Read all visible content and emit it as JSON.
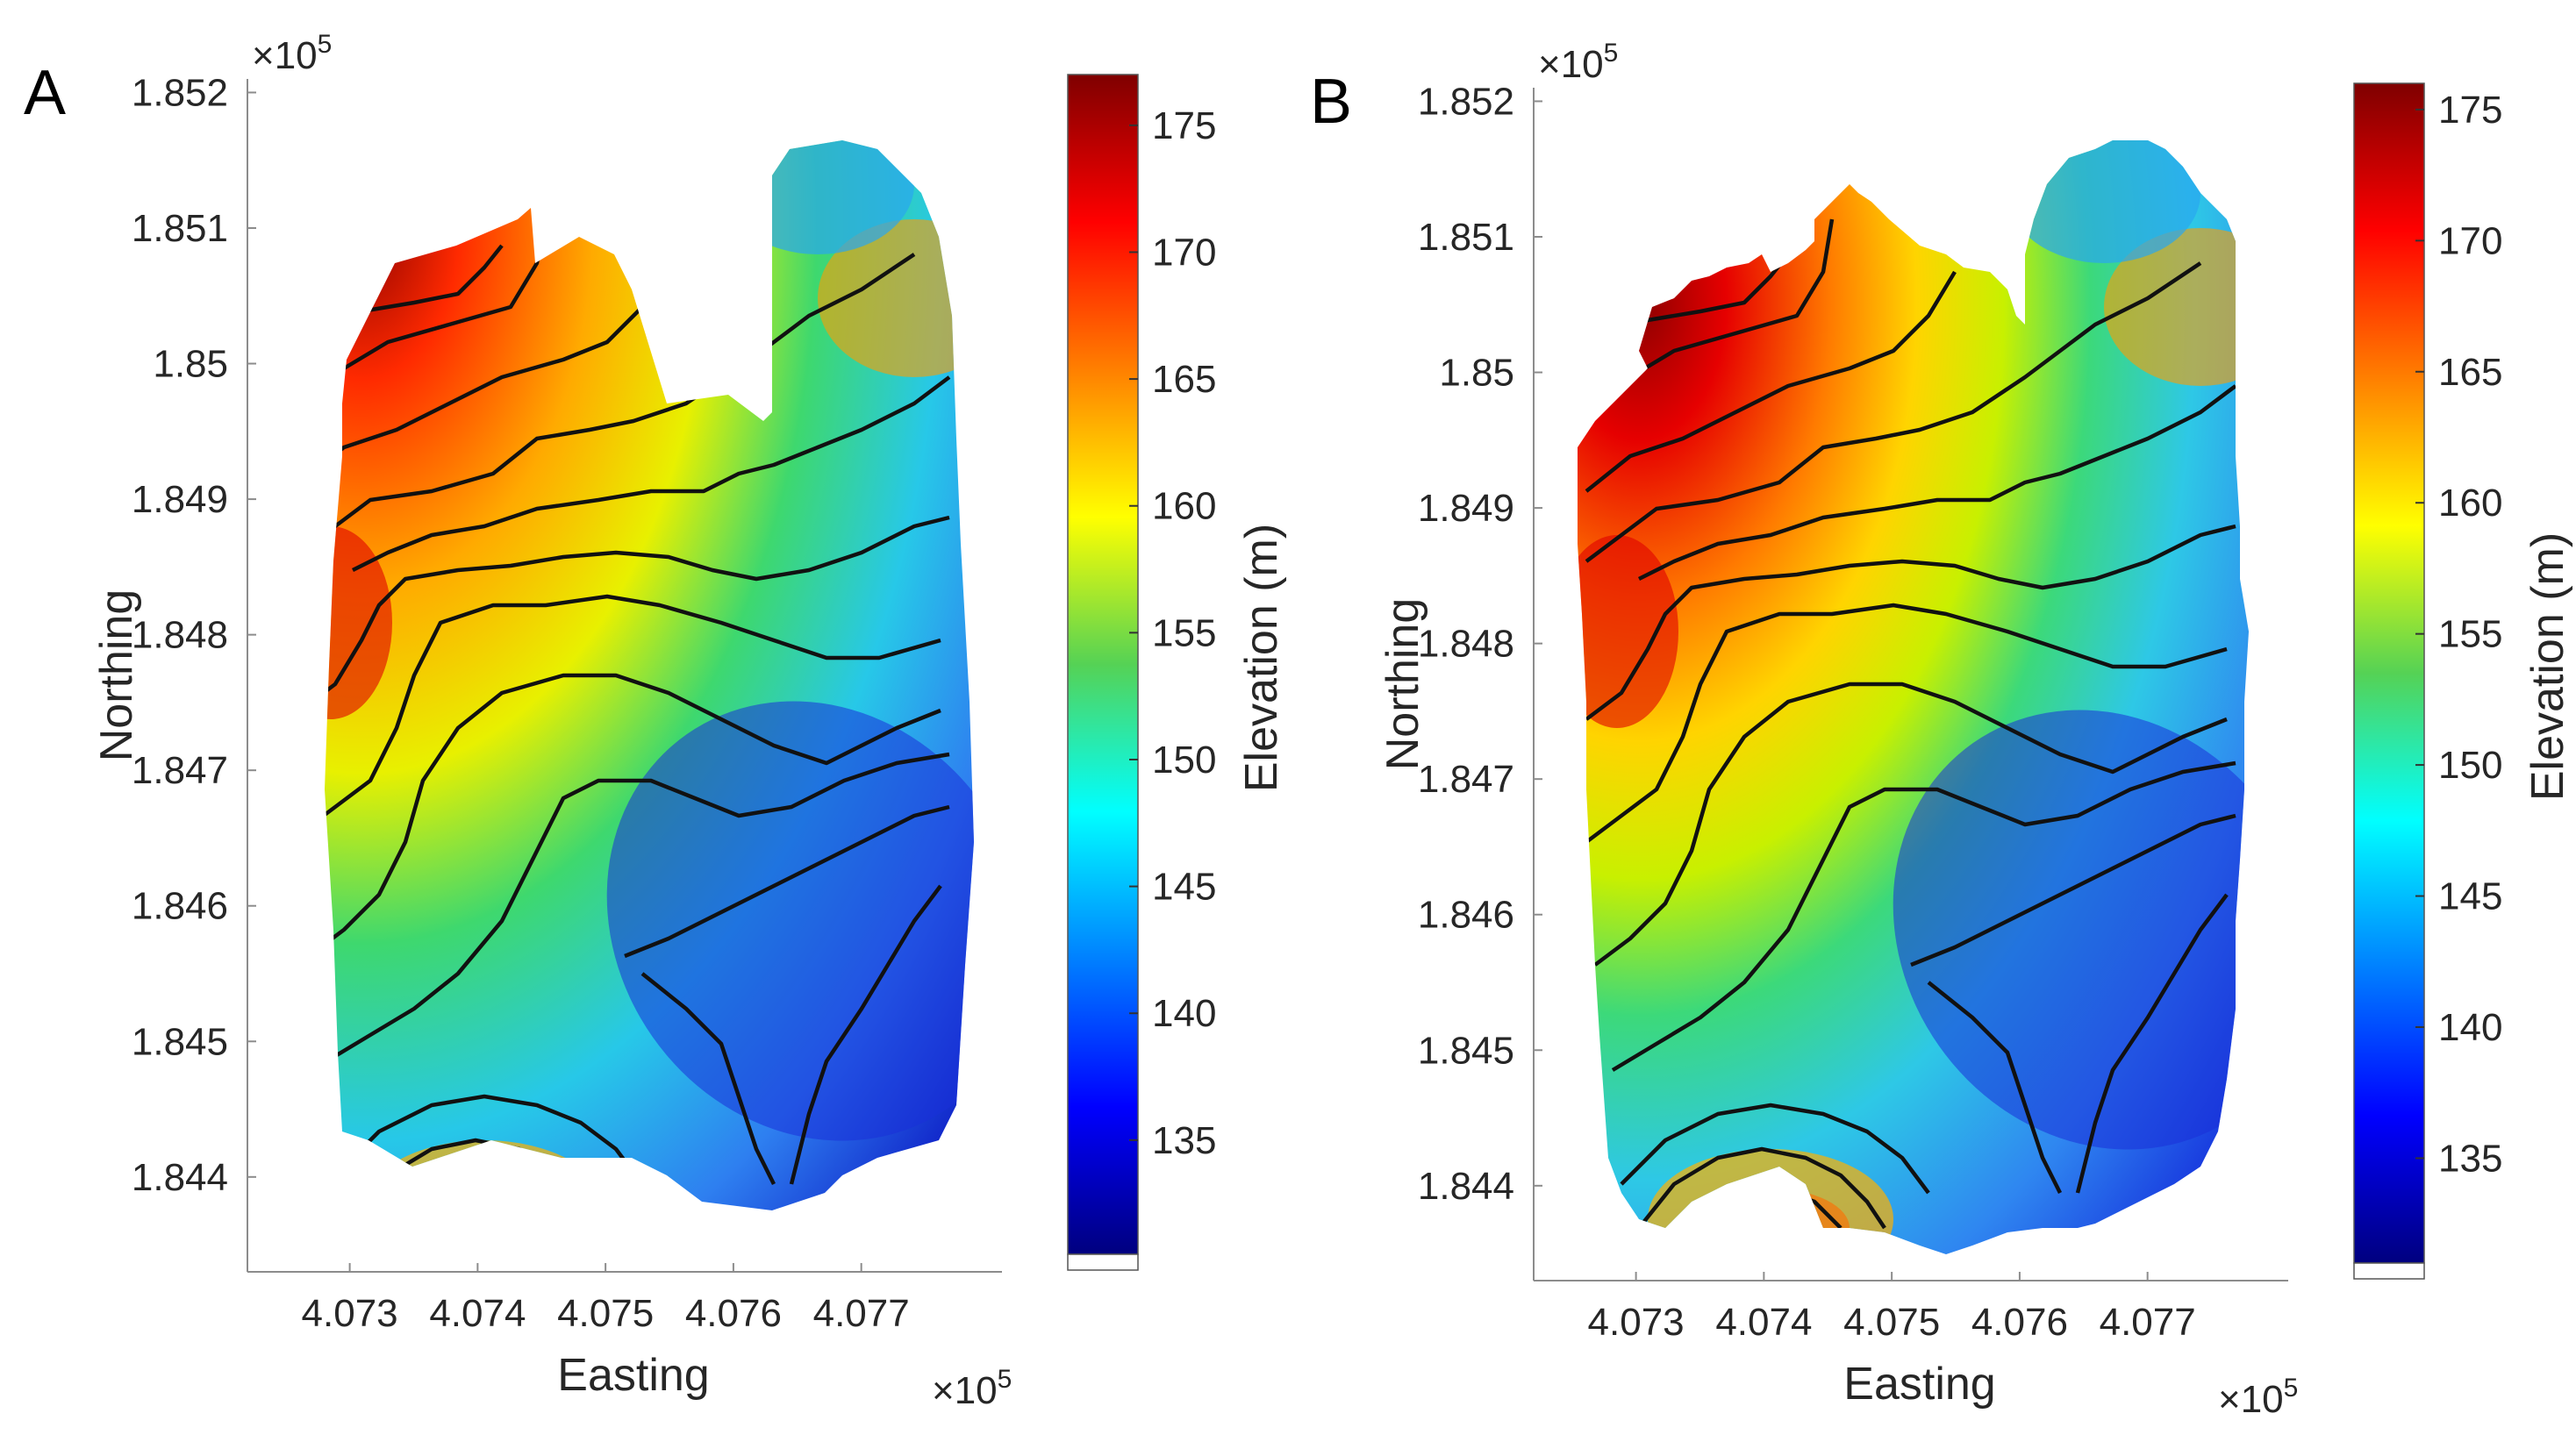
{
  "chart_data": [
    {
      "panel": "A",
      "type": "heatmap",
      "title": "",
      "xlabel": "Easting",
      "ylabel": "Northing",
      "x_exponent": {
        "prefix": "×10",
        "power": "5"
      },
      "y_exponent": {
        "prefix": "×10",
        "power": "5"
      },
      "x_ticks": [
        "4.073",
        "4.074",
        "4.075",
        "4.076",
        "4.077"
      ],
      "y_ticks": [
        "1.852",
        "1.851",
        "1.85",
        "1.849",
        "1.848",
        "1.847",
        "1.846",
        "1.845",
        "1.844"
      ],
      "xlim": [
        4.0722,
        4.0781
      ],
      "ylim": [
        1.8433,
        1.8521
      ],
      "colorbar": {
        "label": "Elevation (m)",
        "ticks": [
          "135",
          "140",
          "145",
          "150",
          "155",
          "160",
          "165",
          "170",
          "175"
        ],
        "range": [
          130.5,
          177
        ],
        "colormap": "jet"
      },
      "contour_interval_m": 5,
      "contour_color": "#111111"
    },
    {
      "panel": "B",
      "type": "heatmap",
      "title": "",
      "xlabel": "Easting",
      "ylabel": "Northing",
      "x_exponent": {
        "prefix": "×10",
        "power": "5"
      },
      "y_exponent": {
        "prefix": "×10",
        "power": "5"
      },
      "x_ticks": [
        "4.073",
        "4.074",
        "4.075",
        "4.076",
        "4.077"
      ],
      "y_ticks": [
        "1.852",
        "1.851",
        "1.85",
        "1.849",
        "1.848",
        "1.847",
        "1.846",
        "1.845",
        "1.844"
      ],
      "xlim": [
        4.0722,
        4.0781
      ],
      "ylim": [
        1.8433,
        1.8521
      ],
      "colorbar": {
        "label": "Elevation (m)",
        "ticks": [
          "135",
          "140",
          "145",
          "150",
          "155",
          "160",
          "165",
          "170",
          "175"
        ],
        "range": [
          131,
          176
        ],
        "colormap": "jet"
      },
      "contour_interval_m": 5,
      "contour_color": "#111111"
    }
  ],
  "colors": {
    "axis": "#8c8c8c",
    "text": "#262626",
    "background": "#ffffff"
  }
}
